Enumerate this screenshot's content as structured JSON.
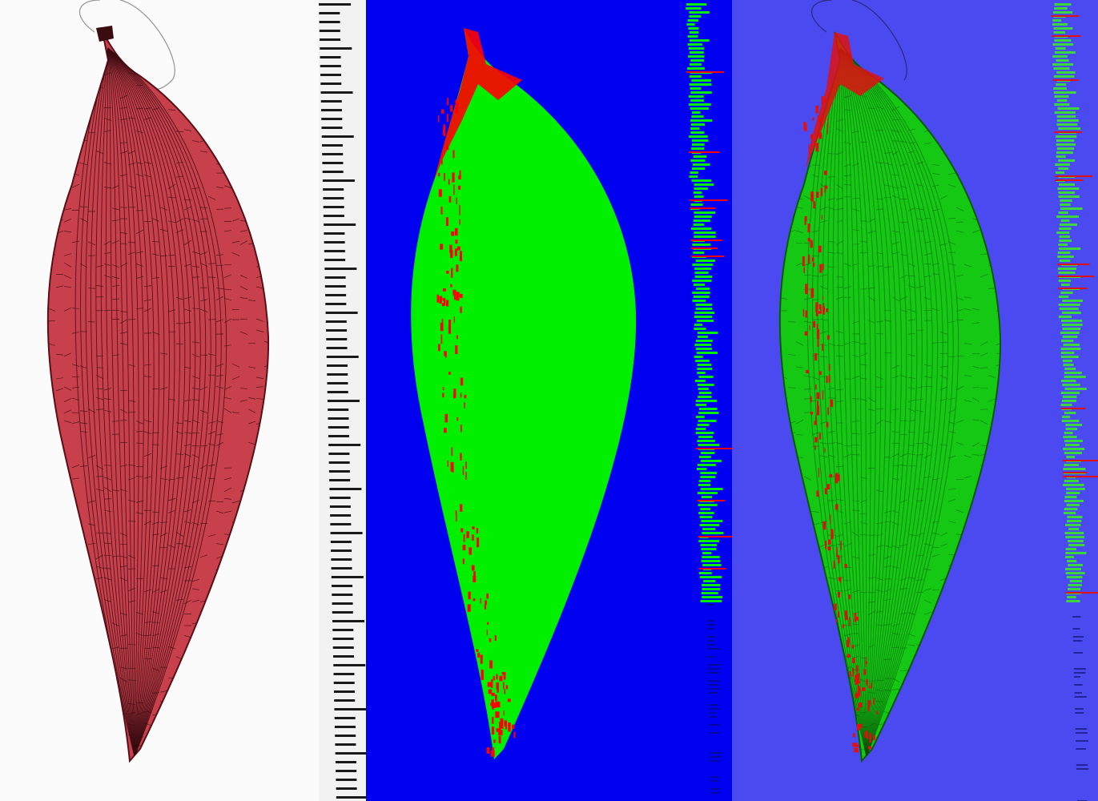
{
  "panels": [
    {
      "name": "original-photo",
      "background": "#fbfbfb",
      "leaf_fill": "#c8404c",
      "vein": "#3a0c10",
      "mask_fill": ""
    },
    {
      "name": "segmentation-mask",
      "background": "#0000f0",
      "leaf_fill": "#00f000",
      "accent": "#ff0000"
    },
    {
      "name": "overlay",
      "background": "#4a4af0",
      "leaf_fill": "#14c814",
      "accent": "#e01010"
    }
  ]
}
